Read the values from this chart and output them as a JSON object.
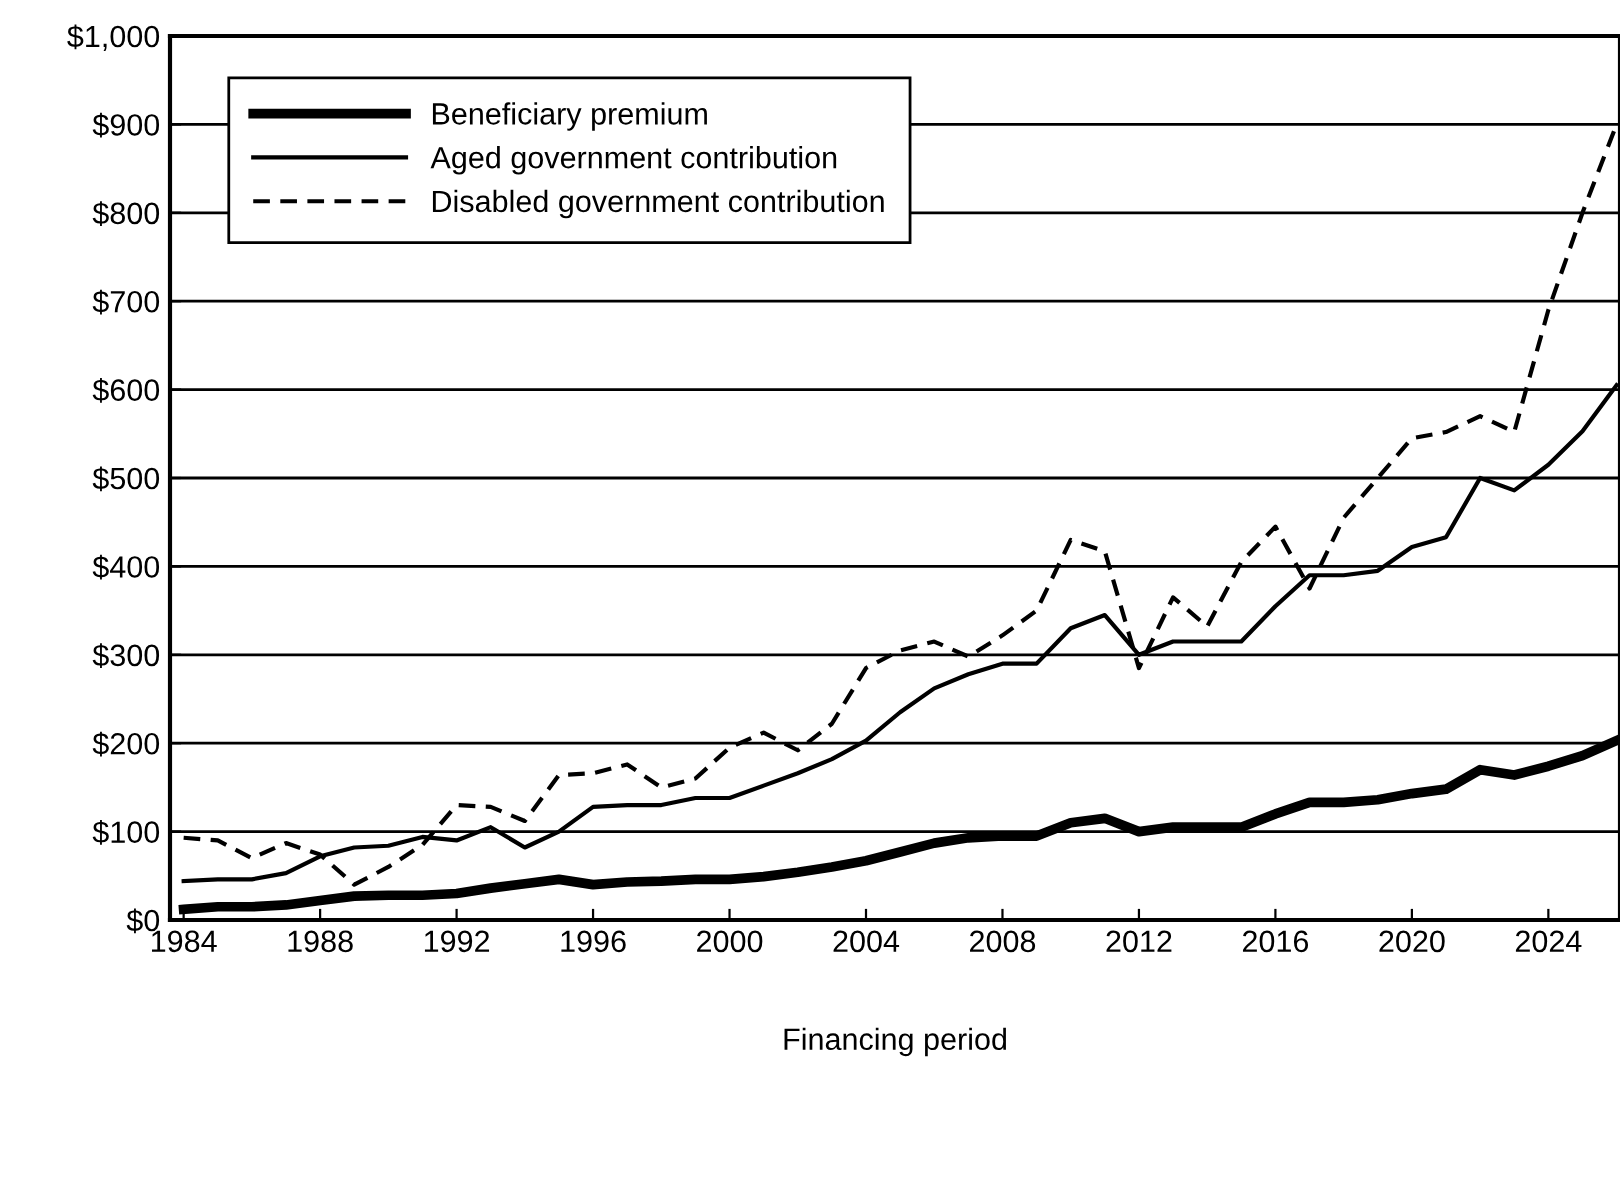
{
  "chart_data": {
    "type": "line",
    "xlabel": "Financing period",
    "x": [
      1984,
      1985,
      1986,
      1987,
      1988,
      1989,
      1990,
      1991,
      1992,
      1993,
      1994,
      1995,
      1996,
      1997,
      1998,
      1999,
      2000,
      2001,
      2002,
      2003,
      2004,
      2005,
      2006,
      2007,
      2008,
      2009,
      2010,
      2011,
      2012,
      2013,
      2014,
      2015,
      2016,
      2017,
      2018,
      2019,
      2020,
      2021,
      2022,
      2023,
      2024,
      2025,
      2026
    ],
    "series": [
      {
        "name": "Beneficiary premium",
        "color": "#000000",
        "line_style": "solid",
        "values": [
          12,
          15,
          15,
          17,
          22,
          27,
          28,
          28,
          30,
          36,
          41,
          46,
          40,
          43,
          44,
          46,
          46,
          49,
          54,
          60,
          67,
          77,
          87,
          93,
          95,
          95,
          110,
          115,
          100,
          105,
          105,
          105,
          120,
          133,
          133,
          136,
          143,
          148,
          170,
          164,
          174,
          186,
          203
        ]
      },
      {
        "name": "Aged government contribution",
        "color": "#000000",
        "line_style": "solid",
        "values": [
          44,
          46,
          46,
          53,
          72,
          82,
          84,
          94,
          90,
          105,
          82,
          100,
          128,
          130,
          130,
          138,
          138,
          152,
          166,
          182,
          203,
          235,
          262,
          278,
          290,
          290,
          330,
          345,
          300,
          315,
          315,
          315,
          355,
          390,
          390,
          395,
          422,
          433,
          500,
          486,
          515,
          553,
          605
        ]
      },
      {
        "name": "Disabled government contribution",
        "color": "#000000",
        "line_style": "dashed",
        "values": [
          93,
          90,
          70,
          87,
          74,
          40,
          60,
          85,
          130,
          128,
          112,
          164,
          166,
          176,
          150,
          160,
          195,
          212,
          192,
          222,
          285,
          305,
          315,
          298,
          322,
          350,
          430,
          417,
          285,
          365,
          332,
          405,
          445,
          375,
          455,
          500,
          545,
          552,
          570,
          552,
          690,
          800,
          900
        ]
      }
    ],
    "xlim": [
      1983.6,
      2026.1
    ],
    "xticks": [
      1984,
      1988,
      1992,
      1996,
      2000,
      2004,
      2008,
      2012,
      2016,
      2020,
      2024
    ],
    "ylim": [
      0,
      1000
    ],
    "yticks": [
      {
        "value": 0,
        "label": "$0"
      },
      {
        "value": 100,
        "label": "$100"
      },
      {
        "value": 200,
        "label": "$200"
      },
      {
        "value": 300,
        "label": "$300"
      },
      {
        "value": 400,
        "label": "$400"
      },
      {
        "value": 500,
        "label": "$500"
      },
      {
        "value": 600,
        "label": "$600"
      },
      {
        "value": 700,
        "label": "$700"
      },
      {
        "value": 800,
        "label": "$800"
      },
      {
        "value": 900,
        "label": "$900"
      },
      {
        "value": 1000,
        "label": "$1,000"
      }
    ],
    "grid": "y",
    "legend": "top left"
  }
}
